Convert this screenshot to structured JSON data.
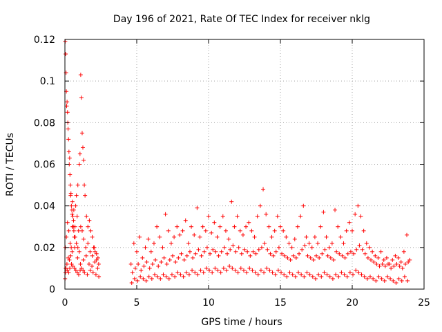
{
  "chart_data": {
    "type": "scatter",
    "title": "Day 196 of 2021, Rate Of TEC Index for receiver nklg",
    "xlabel": "GPS time / hours",
    "ylabel": "ROTI / TECUs",
    "xlim": [
      0,
      25
    ],
    "ylim": [
      0,
      0.12
    ],
    "x_ticks": [
      "0",
      "5",
      "10",
      "15",
      "20",
      "25"
    ],
    "y_ticks": [
      "0",
      "0.02",
      "0.04",
      "0.06",
      "0.08",
      "0.1",
      "0.12"
    ],
    "grid": true,
    "marker": "plus",
    "color": "#ff0000",
    "series": [
      {
        "x": [
          0.02,
          0.05,
          0.08,
          0.1,
          0.12,
          0.15,
          0.18,
          0.2,
          0.22,
          0.25,
          0.28,
          0.3,
          0.33,
          0.35,
          0.38,
          0.4,
          0.42,
          0.45,
          0.48,
          0.5,
          0.52,
          0.55,
          0.58,
          0.6,
          0.62,
          0.65,
          0.7,
          0.75,
          0.8,
          0.85,
          0.9,
          0.95,
          1.0,
          1.05,
          1.1,
          1.15,
          1.2,
          1.25,
          1.3,
          1.35,
          1.4,
          1.5,
          1.6,
          1.7,
          1.8,
          1.9,
          2.0,
          2.1,
          2.2,
          2.3,
          0.03,
          0.1,
          0.18,
          0.27,
          0.36,
          0.44,
          0.53,
          0.62,
          0.71,
          0.8,
          0.9,
          1.0,
          1.1,
          1.2,
          1.3,
          1.45,
          1.6,
          1.75,
          1.9,
          2.05,
          2.2,
          2.35,
          0.06,
          0.14,
          0.23,
          0.31,
          0.4,
          0.5,
          0.68,
          0.88,
          1.08,
          1.28,
          1.48,
          1.68,
          1.88,
          2.08,
          2.28,
          0.01,
          0.04,
          0.07,
          0.16,
          0.26,
          0.34,
          0.46,
          0.56,
          0.66,
          0.76,
          0.86,
          0.96,
          1.06,
          1.16,
          1.26,
          1.36,
          1.56,
          1.76,
          1.96,
          2.16,
          2.36
        ],
        "y": [
          0.119,
          0.113,
          0.104,
          0.095,
          0.088,
          0.09,
          0.085,
          0.08,
          0.077,
          0.072,
          0.066,
          0.06,
          0.063,
          0.055,
          0.05,
          0.045,
          0.046,
          0.04,
          0.038,
          0.036,
          0.042,
          0.035,
          0.03,
          0.033,
          0.028,
          0.025,
          0.03,
          0.04,
          0.045,
          0.035,
          0.05,
          0.028,
          0.06,
          0.065,
          0.103,
          0.092,
          0.075,
          0.068,
          0.062,
          0.05,
          0.045,
          0.035,
          0.03,
          0.033,
          0.028,
          0.025,
          0.02,
          0.018,
          0.017,
          0.015,
          0.02,
          0.025,
          0.032,
          0.028,
          0.022,
          0.02,
          0.03,
          0.038,
          0.025,
          0.022,
          0.02,
          0.018,
          0.03,
          0.028,
          0.024,
          0.02,
          0.022,
          0.018,
          0.016,
          0.02,
          0.014,
          0.012,
          0.01,
          0.012,
          0.015,
          0.014,
          0.016,
          0.018,
          0.02,
          0.015,
          0.012,
          0.014,
          0.016,
          0.012,
          0.011,
          0.013,
          0.01,
          0.005,
          0.008,
          0.01,
          0.009,
          0.008,
          0.01,
          0.012,
          0.011,
          0.01,
          0.009,
          0.008,
          0.007,
          0.009,
          0.01,
          0.009,
          0.008,
          0.007,
          0.009,
          0.008,
          0.007,
          0.006
        ]
      },
      {
        "x": [
          4.6,
          4.8,
          5.0,
          5.2,
          5.4,
          5.6,
          5.8,
          6.0,
          6.2,
          6.4,
          6.6,
          6.8,
          7.0,
          7.2,
          7.4,
          7.6,
          7.8,
          8.0,
          8.2,
          8.4,
          8.6,
          8.8,
          9.0,
          9.2,
          9.4,
          9.6,
          9.8,
          10.0,
          10.2,
          10.4,
          10.6,
          10.8,
          11.0,
          11.2,
          11.4,
          11.6,
          11.8,
          12.0,
          12.2,
          12.4,
          12.6,
          12.8,
          13.0,
          13.2,
          13.4,
          13.6,
          13.8,
          14.0,
          14.2,
          14.4,
          14.6,
          14.8,
          15.0,
          15.2,
          15.4,
          15.6,
          15.8,
          16.0,
          16.2,
          16.4,
          16.6,
          16.8,
          17.0,
          17.2,
          17.4,
          17.6,
          17.8,
          18.0,
          18.2,
          18.4,
          18.6,
          18.8,
          19.0,
          19.2,
          19.4,
          19.6,
          19.8,
          20.0,
          20.2,
          20.4,
          20.6,
          20.8,
          21.0,
          21.2,
          21.4,
          21.6,
          21.8,
          22.0,
          22.2,
          22.4,
          22.6,
          22.8,
          23.0,
          23.2,
          23.4,
          23.6,
          23.8,
          24.0
        ],
        "y": [
          0.012,
          0.022,
          0.018,
          0.025,
          0.015,
          0.02,
          0.024,
          0.018,
          0.022,
          0.03,
          0.025,
          0.02,
          0.036,
          0.028,
          0.022,
          0.025,
          0.03,
          0.026,
          0.028,
          0.033,
          0.022,
          0.03,
          0.026,
          0.039,
          0.025,
          0.03,
          0.028,
          0.035,
          0.027,
          0.032,
          0.025,
          0.03,
          0.035,
          0.028,
          0.024,
          0.042,
          0.03,
          0.035,
          0.028,
          0.026,
          0.03,
          0.032,
          0.028,
          0.025,
          0.035,
          0.04,
          0.048,
          0.036,
          0.03,
          0.025,
          0.028,
          0.035,
          0.03,
          0.028,
          0.025,
          0.022,
          0.02,
          0.024,
          0.03,
          0.035,
          0.04,
          0.025,
          0.022,
          0.02,
          0.025,
          0.022,
          0.03,
          0.037,
          0.025,
          0.02,
          0.022,
          0.038,
          0.03,
          0.025,
          0.022,
          0.028,
          0.032,
          0.028,
          0.036,
          0.04,
          0.035,
          0.028,
          0.022,
          0.02,
          0.018,
          0.016,
          0.015,
          0.018,
          0.014,
          0.015,
          0.012,
          0.014,
          0.016,
          0.015,
          0.013,
          0.018,
          0.026,
          0.014
        ]
      },
      {
        "x": [
          4.7,
          4.9,
          5.1,
          5.3,
          5.5,
          5.7,
          5.9,
          6.1,
          6.3,
          6.5,
          6.7,
          6.9,
          7.1,
          7.3,
          7.5,
          7.7,
          7.9,
          8.1,
          8.3,
          8.5,
          8.7,
          8.9,
          9.1,
          9.3,
          9.5,
          9.7,
          9.9,
          10.1,
          10.3,
          10.5,
          10.7,
          10.9,
          11.1,
          11.3,
          11.5,
          11.7,
          11.9,
          12.1,
          12.3,
          12.5,
          12.7,
          12.9,
          13.1,
          13.3,
          13.5,
          13.7,
          13.9,
          14.1,
          14.3,
          14.5,
          14.7,
          14.9,
          15.1,
          15.3,
          15.5,
          15.7,
          15.9,
          16.1,
          16.3,
          16.5,
          16.7,
          16.9,
          17.1,
          17.3,
          17.5,
          17.7,
          17.9,
          18.1,
          18.3,
          18.5,
          18.7,
          18.9,
          19.1,
          19.3,
          19.5,
          19.7,
          19.9,
          20.1,
          20.3,
          20.5,
          20.7,
          20.9,
          21.1,
          21.3,
          21.5,
          21.7,
          21.9,
          22.1,
          22.3,
          22.5,
          22.7,
          22.9,
          23.1,
          23.3,
          23.5,
          23.7,
          23.9
        ],
        "y": [
          0.008,
          0.01,
          0.012,
          0.009,
          0.011,
          0.013,
          0.01,
          0.012,
          0.014,
          0.011,
          0.013,
          0.015,
          0.012,
          0.014,
          0.016,
          0.013,
          0.015,
          0.017,
          0.014,
          0.016,
          0.018,
          0.015,
          0.017,
          0.019,
          0.016,
          0.018,
          0.02,
          0.017,
          0.019,
          0.018,
          0.016,
          0.018,
          0.02,
          0.017,
          0.019,
          0.021,
          0.018,
          0.02,
          0.017,
          0.019,
          0.018,
          0.016,
          0.018,
          0.017,
          0.019,
          0.02,
          0.022,
          0.019,
          0.017,
          0.016,
          0.018,
          0.02,
          0.017,
          0.016,
          0.015,
          0.014,
          0.016,
          0.015,
          0.017,
          0.019,
          0.021,
          0.016,
          0.015,
          0.014,
          0.016,
          0.015,
          0.017,
          0.019,
          0.016,
          0.015,
          0.014,
          0.018,
          0.017,
          0.016,
          0.015,
          0.017,
          0.018,
          0.017,
          0.019,
          0.021,
          0.019,
          0.017,
          0.015,
          0.014,
          0.013,
          0.012,
          0.011,
          0.012,
          0.011,
          0.012,
          0.01,
          0.011,
          0.012,
          0.011,
          0.01,
          0.012,
          0.013
        ]
      },
      {
        "x": [
          4.65,
          4.85,
          5.05,
          5.25,
          5.45,
          5.65,
          5.85,
          6.05,
          6.25,
          6.45,
          6.65,
          6.85,
          7.05,
          7.25,
          7.45,
          7.65,
          7.85,
          8.05,
          8.25,
          8.45,
          8.65,
          8.85,
          9.05,
          9.25,
          9.45,
          9.65,
          9.85,
          10.05,
          10.25,
          10.45,
          10.65,
          10.85,
          11.05,
          11.25,
          11.45,
          11.65,
          11.85,
          12.05,
          12.25,
          12.45,
          12.65,
          12.85,
          13.05,
          13.25,
          13.45,
          13.65,
          13.85,
          14.05,
          14.25,
          14.45,
          14.65,
          14.85,
          15.05,
          15.25,
          15.45,
          15.65,
          15.85,
          16.05,
          16.25,
          16.45,
          16.65,
          16.85,
          17.05,
          17.25,
          17.45,
          17.65,
          17.85,
          18.05,
          18.25,
          18.45,
          18.65,
          18.85,
          19.05,
          19.25,
          19.45,
          19.65,
          19.85,
          20.05,
          20.25,
          20.45,
          20.65,
          20.85,
          21.05,
          21.25,
          21.45,
          21.65,
          21.85,
          22.05,
          22.25,
          22.45,
          22.65,
          22.85,
          23.05,
          23.25,
          23.45,
          23.65,
          23.85
        ],
        "y": [
          0.003,
          0.005,
          0.004,
          0.006,
          0.005,
          0.004,
          0.006,
          0.005,
          0.007,
          0.006,
          0.005,
          0.007,
          0.006,
          0.005,
          0.007,
          0.006,
          0.008,
          0.007,
          0.006,
          0.008,
          0.007,
          0.009,
          0.008,
          0.007,
          0.009,
          0.008,
          0.01,
          0.009,
          0.008,
          0.01,
          0.009,
          0.008,
          0.01,
          0.009,
          0.011,
          0.01,
          0.009,
          0.008,
          0.01,
          0.009,
          0.008,
          0.01,
          0.009,
          0.008,
          0.007,
          0.009,
          0.008,
          0.01,
          0.009,
          0.008,
          0.007,
          0.009,
          0.008,
          0.007,
          0.006,
          0.008,
          0.007,
          0.006,
          0.008,
          0.007,
          0.006,
          0.008,
          0.007,
          0.006,
          0.005,
          0.007,
          0.006,
          0.008,
          0.007,
          0.006,
          0.005,
          0.007,
          0.006,
          0.008,
          0.007,
          0.006,
          0.008,
          0.007,
          0.009,
          0.008,
          0.007,
          0.006,
          0.005,
          0.006,
          0.005,
          0.004,
          0.006,
          0.005,
          0.004,
          0.006,
          0.005,
          0.004,
          0.003,
          0.005,
          0.004,
          0.006,
          0.004
        ]
      }
    ]
  }
}
